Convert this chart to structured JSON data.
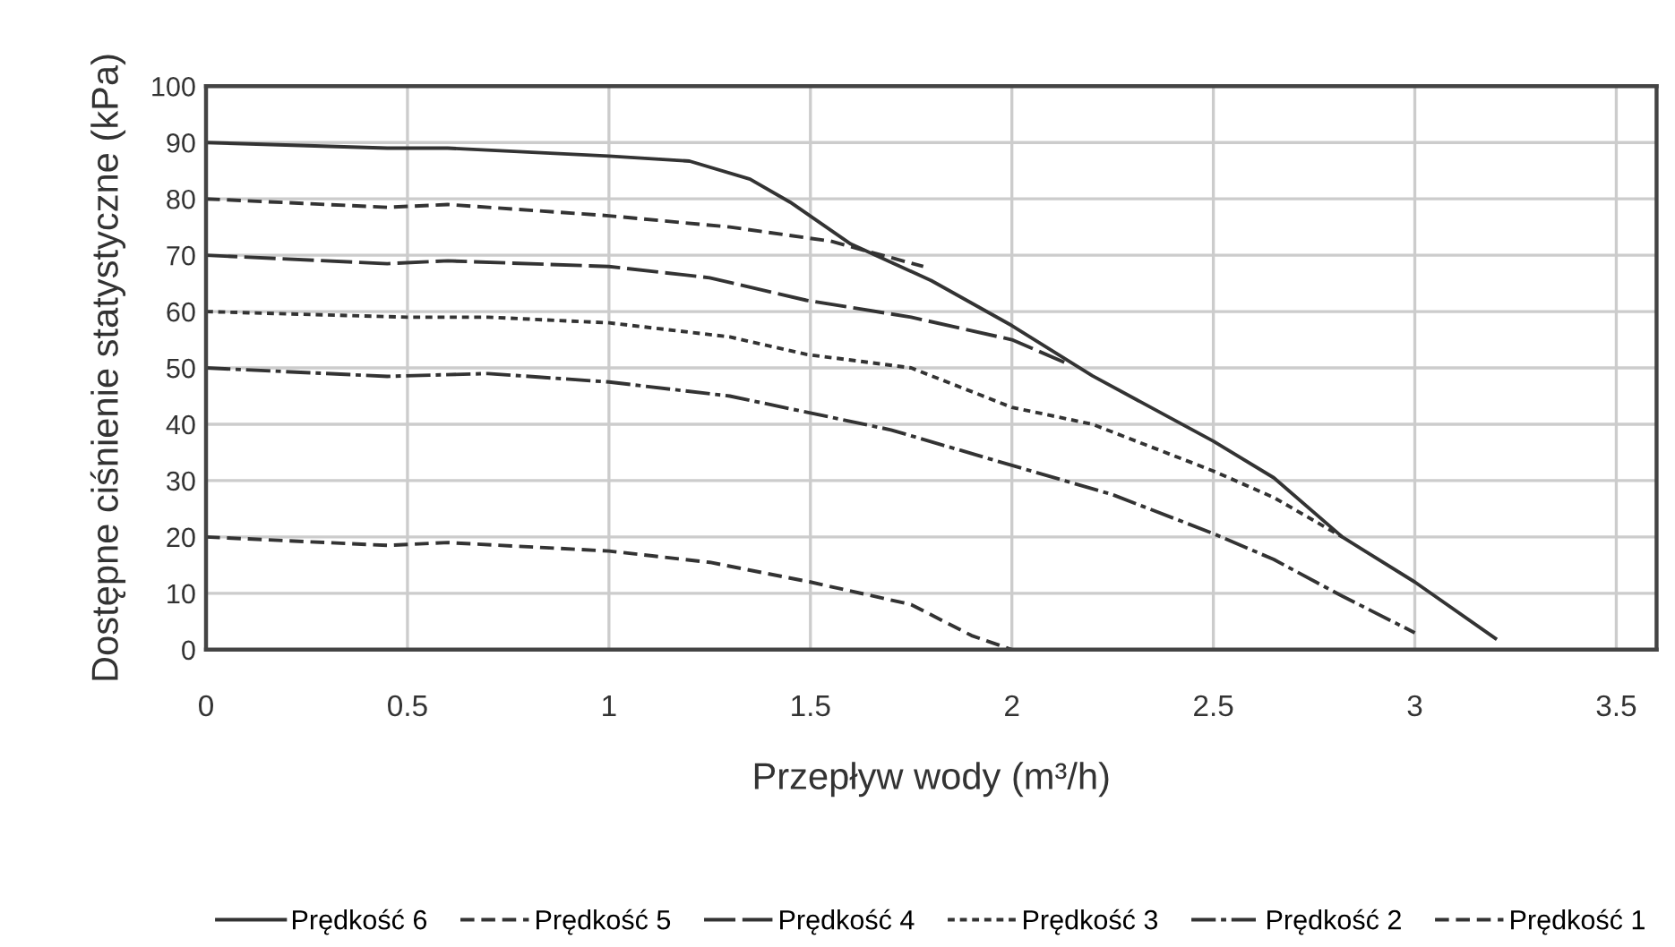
{
  "chart_data": {
    "type": "line",
    "xlabel": "Przepływ wody (m³/h)",
    "ylabel": "Dostępne ciśnienie statystyczne (kPa)",
    "xlim": [
      0,
      3.6
    ],
    "xticks": [
      0,
      0.5,
      1,
      1.5,
      2,
      2.5,
      3,
      3.5
    ],
    "ylim": [
      0,
      100
    ],
    "yticks": [
      0,
      10,
      20,
      30,
      40,
      50,
      60,
      70,
      80,
      90,
      100
    ],
    "grid": true,
    "legend": "bottom",
    "marker": "none",
    "series": [
      {
        "name": "Prędkość 6",
        "color": "#333333",
        "line_style": "solid",
        "x": [
          0,
          0.45,
          0.6,
          1.0,
          1.2,
          1.35,
          1.45,
          1.6,
          1.8,
          2.0,
          2.2,
          2.5,
          2.65,
          2.82,
          3.0,
          3.2
        ],
        "values": [
          90,
          89,
          89,
          87.6,
          86.7,
          83.5,
          79.4,
          72,
          65.5,
          57.5,
          48.6,
          37,
          30.5,
          20,
          12,
          2
        ]
      },
      {
        "name": "Prędkość 5",
        "color": "#333333",
        "line_style": "dashed",
        "x": [
          0,
          0.45,
          0.6,
          1.0,
          1.3,
          1.55,
          1.78
        ],
        "values": [
          80,
          78.5,
          79,
          77,
          75,
          72.5,
          68
        ]
      },
      {
        "name": "Prędkość 4",
        "color": "#333333",
        "line_style": "longdash",
        "x": [
          0,
          0.45,
          0.6,
          1.0,
          1.25,
          1.49,
          1.75,
          2.0,
          2.13
        ],
        "values": [
          70,
          68.5,
          69,
          68,
          66,
          62,
          59,
          55,
          51
        ]
      },
      {
        "name": "Prędkość 3",
        "color": "#333333",
        "line_style": "dotted",
        "x": [
          0,
          0.5,
          0.7,
          1.0,
          1.3,
          1.49,
          1.75,
          2.0,
          2.2,
          2.5,
          2.65,
          2.82
        ],
        "values": [
          60,
          59,
          59,
          58,
          55.5,
          52.4,
          50,
          43,
          40,
          31.7,
          27,
          20
        ]
      },
      {
        "name": "Prędkość 2",
        "color": "#333333",
        "line_style": "dashdot",
        "x": [
          0,
          0.45,
          0.7,
          1.0,
          1.3,
          1.5,
          1.7,
          2.0,
          2.25,
          2.5,
          2.65,
          2.82,
          3.0
        ],
        "values": [
          50,
          48.5,
          49,
          47.5,
          45,
          42,
          39,
          32.7,
          27.5,
          20.6,
          16,
          9.5,
          3
        ]
      },
      {
        "name": "Prędkość 1",
        "color": "#333333",
        "line_style": "dashed",
        "x": [
          0,
          0.45,
          0.6,
          1.0,
          1.25,
          1.5,
          1.75,
          1.9,
          2.0
        ],
        "values": [
          20,
          18.5,
          19,
          17.5,
          15.5,
          12,
          8,
          2.5,
          0
        ]
      }
    ]
  }
}
